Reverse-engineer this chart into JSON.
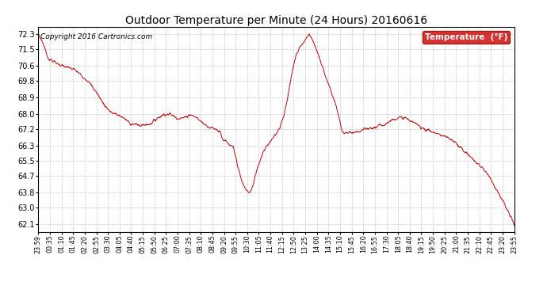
{
  "title": "Outdoor Temperature per Minute (24 Hours) 20160616",
  "copyright_text": "Copyright 2016 Cartronics.com",
  "legend_label": "Temperature  (°F)",
  "line_color": "#cc0000",
  "background_color": "#ffffff",
  "grid_color": "#bbbbbb",
  "yticks": [
    62.1,
    63.0,
    63.8,
    64.7,
    65.5,
    66.3,
    67.2,
    68.0,
    68.9,
    69.8,
    70.6,
    71.5,
    72.3
  ],
  "ylim": [
    61.7,
    72.7
  ],
  "xtick_labels": [
    "23:59",
    "00:35",
    "01:10",
    "01:45",
    "02:20",
    "02:55",
    "03:30",
    "04:05",
    "04:40",
    "05:15",
    "05:50",
    "06:25",
    "07:00",
    "07:35",
    "08:10",
    "08:45",
    "09:20",
    "09:55",
    "10:30",
    "11:05",
    "11:40",
    "12:15",
    "12:50",
    "13:25",
    "14:00",
    "14:35",
    "15:10",
    "15:45",
    "16:20",
    "16:55",
    "17:30",
    "18:05",
    "18:40",
    "19:15",
    "19:50",
    "20:25",
    "21:00",
    "21:35",
    "22:10",
    "22:45",
    "23:20",
    "23:55"
  ],
  "num_points": 1440,
  "keyframe_x": [
    0,
    15,
    30,
    50,
    72,
    90,
    110,
    130,
    150,
    175,
    200,
    220,
    250,
    280,
    310,
    340,
    360,
    380,
    400,
    420,
    440,
    460,
    480,
    500,
    520,
    540,
    545,
    550,
    555,
    560,
    570,
    580,
    590,
    600,
    610,
    620,
    630,
    640,
    650,
    660,
    670,
    680,
    690,
    700,
    710,
    720,
    730,
    740,
    750,
    760,
    770,
    780,
    790,
    800,
    810,
    820,
    830,
    840,
    860,
    880,
    900,
    920,
    940,
    960,
    990,
    1020,
    1050,
    1080,
    1110,
    1140,
    1170,
    1200,
    1230,
    1260,
    1290,
    1320,
    1360,
    1400,
    1439
  ],
  "keyframe_y": [
    72.3,
    71.8,
    71.0,
    70.8,
    70.6,
    70.5,
    70.4,
    70.1,
    69.8,
    69.2,
    68.5,
    68.1,
    67.9,
    67.5,
    67.4,
    67.5,
    67.8,
    68.0,
    68.0,
    67.8,
    67.8,
    68.0,
    67.8,
    67.5,
    67.3,
    67.2,
    67.1,
    67.1,
    66.8,
    66.6,
    66.5,
    66.3,
    66.2,
    65.5,
    64.7,
    64.2,
    63.9,
    63.8,
    64.2,
    65.0,
    65.5,
    66.0,
    66.3,
    66.5,
    66.7,
    67.0,
    67.3,
    67.8,
    68.5,
    69.5,
    70.5,
    71.2,
    71.6,
    71.8,
    72.1,
    72.3,
    72.0,
    71.5,
    70.5,
    69.5,
    68.5,
    67.0,
    67.0,
    67.0,
    67.2,
    67.3,
    67.5,
    67.8,
    67.8,
    67.5,
    67.2,
    67.0,
    66.8,
    66.5,
    66.0,
    65.5,
    64.8,
    63.5,
    62.1
  ]
}
